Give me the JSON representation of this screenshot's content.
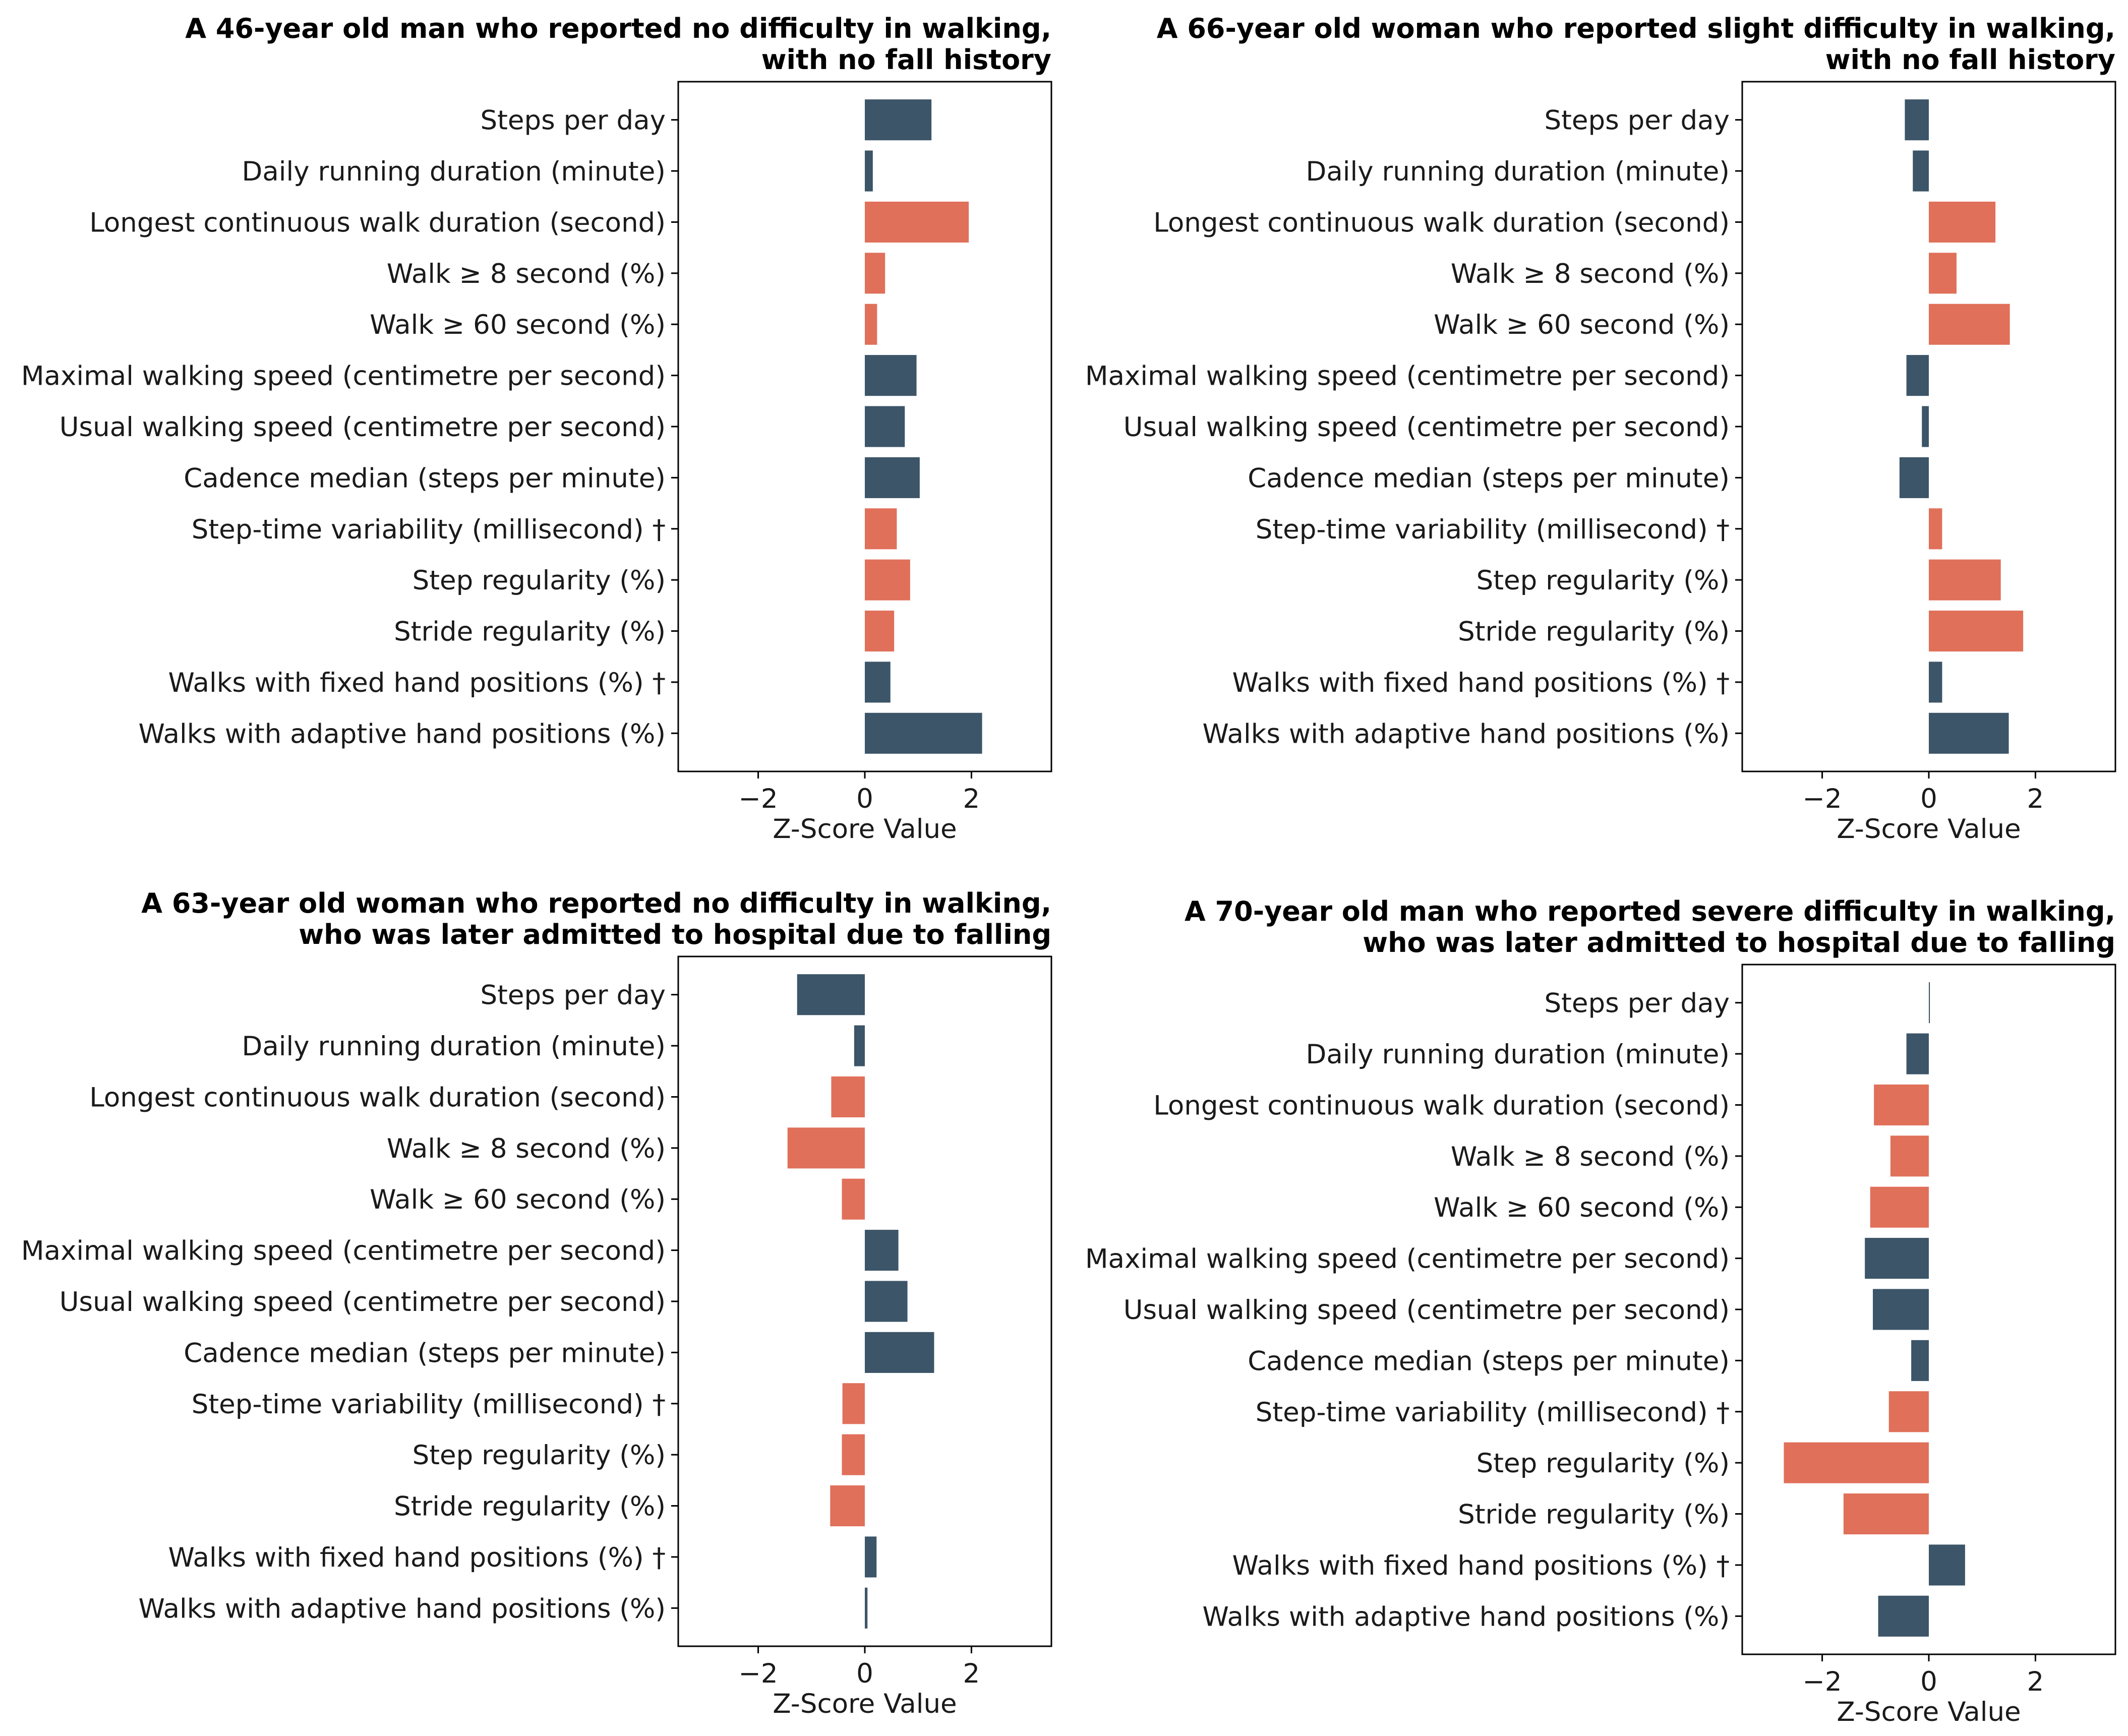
{
  "colors": {
    "slate": "#3c5568",
    "coral": "#e0705a"
  },
  "chart_data": [
    {
      "type": "bar",
      "orientation": "horizontal",
      "title_lines": [
        "A 46-year old man who reported no difficulty in walking,",
        "with no fall history"
      ],
      "categories": [
        "Steps per day",
        "Daily running duration (minute)",
        "Longest continuous walk duration (second)",
        "Walk ≥ 8 second (%)",
        "Walk ≥ 60 second (%)",
        "Maximal walking speed (centimetre per second)",
        "Usual walking speed (centimetre per second)",
        "Cadence median (steps per minute)",
        "Step-time variability (millisecond) †",
        "Step regularity (%)",
        "Stride regularity (%)",
        "Walks with fixed hand positions (%) †",
        "Walks with adaptive hand positions (%)"
      ],
      "values": [
        1.25,
        0.15,
        1.95,
        0.38,
        0.23,
        0.97,
        0.75,
        1.03,
        0.6,
        0.85,
        0.55,
        0.48,
        2.2
      ],
      "bar_colors": [
        "slate",
        "slate",
        "coral",
        "coral",
        "coral",
        "slate",
        "slate",
        "slate",
        "coral",
        "coral",
        "coral",
        "slate",
        "slate"
      ],
      "xlabel": "Z-Score Value",
      "xticks": [
        -2,
        0,
        2
      ],
      "xtick_labels": [
        "−2",
        "0",
        "2"
      ],
      "xlim": [
        -3.5,
        3.5
      ]
    },
    {
      "type": "bar",
      "orientation": "horizontal",
      "title_lines": [
        "A 66-year old woman who reported slight difficulty in walking,",
        "with no fall history"
      ],
      "categories": [
        "Steps per day",
        "Daily running duration (minute)",
        "Longest continuous walk duration (second)",
        "Walk ≥ 8 second (%)",
        "Walk ≥ 60 second (%)",
        "Maximal walking speed (centimetre per second)",
        "Usual walking speed (centimetre per second)",
        "Cadence median (steps per minute)",
        "Step-time variability (millisecond) †",
        "Step regularity (%)",
        "Stride regularity (%)",
        "Walks with fixed hand positions (%) †",
        "Walks with adaptive hand positions (%)"
      ],
      "values": [
        -0.45,
        -0.3,
        1.25,
        0.52,
        1.52,
        -0.42,
        -0.13,
        -0.55,
        0.25,
        1.35,
        1.77,
        0.25,
        1.5
      ],
      "bar_colors": [
        "slate",
        "slate",
        "coral",
        "coral",
        "coral",
        "slate",
        "slate",
        "slate",
        "coral",
        "coral",
        "coral",
        "slate",
        "slate"
      ],
      "xlabel": "Z-Score Value",
      "xticks": [
        -2,
        0,
        2
      ],
      "xtick_labels": [
        "−2",
        "0",
        "2"
      ],
      "xlim": [
        -3.5,
        3.5
      ]
    },
    {
      "type": "bar",
      "orientation": "horizontal",
      "title_lines": [
        "A 63-year old woman who reported no difficulty in walking,",
        "who was later admitted to hospital due to falling"
      ],
      "categories": [
        "Steps per day",
        "Daily running duration (minute)",
        "Longest continuous walk duration (second)",
        "Walk ≥ 8 second (%)",
        "Walk ≥ 60 second (%)",
        "Maximal walking speed (centimetre per second)",
        "Usual walking speed (centimetre per second)",
        "Cadence median (steps per minute)",
        "Step-time variability (millisecond) †",
        "Step regularity (%)",
        "Stride regularity (%)",
        "Walks with fixed hand positions (%) †",
        "Walks with adaptive hand positions (%)"
      ],
      "values": [
        -1.27,
        -0.2,
        -0.63,
        -1.45,
        -0.43,
        0.63,
        0.8,
        1.3,
        -0.42,
        -0.43,
        -0.65,
        0.22,
        0.05
      ],
      "bar_colors": [
        "slate",
        "slate",
        "coral",
        "coral",
        "coral",
        "slate",
        "slate",
        "slate",
        "coral",
        "coral",
        "coral",
        "slate",
        "slate"
      ],
      "xlabel": "Z-Score Value",
      "xticks": [
        -2,
        0,
        2
      ],
      "xtick_labels": [
        "−2",
        "0",
        "2"
      ],
      "xlim": [
        -3.5,
        3.5
      ]
    },
    {
      "type": "bar",
      "orientation": "horizontal",
      "title_lines": [
        "A 70-year old man who reported severe difficulty in walking,",
        "who was later admitted to hospital due to falling"
      ],
      "categories": [
        "Steps per day",
        "Daily running duration (minute)",
        "Longest continuous walk duration (second)",
        "Walk ≥ 8 second (%)",
        "Walk ≥ 60 second (%)",
        "Maximal walking speed (centimetre per second)",
        "Usual walking speed (centimetre per second)",
        "Cadence median (steps per minute)",
        "Step-time variability (millisecond) †",
        "Step regularity (%)",
        "Stride regularity (%)",
        "Walks with fixed hand positions (%) †",
        "Walks with adaptive hand positions (%)"
      ],
      "values": [
        0.02,
        -0.42,
        -1.03,
        -0.72,
        -1.1,
        -1.2,
        -1.05,
        -0.33,
        -0.75,
        -2.72,
        -1.6,
        0.68,
        -0.95
      ],
      "bar_colors": [
        "slate",
        "slate",
        "coral",
        "coral",
        "coral",
        "slate",
        "slate",
        "slate",
        "coral",
        "coral",
        "coral",
        "slate",
        "slate"
      ],
      "xlabel": "Z-Score Value",
      "xticks": [
        -2,
        0,
        2
      ],
      "xtick_labels": [
        "−2",
        "0",
        "2"
      ],
      "xlim": [
        -3.5,
        3.5
      ]
    }
  ]
}
